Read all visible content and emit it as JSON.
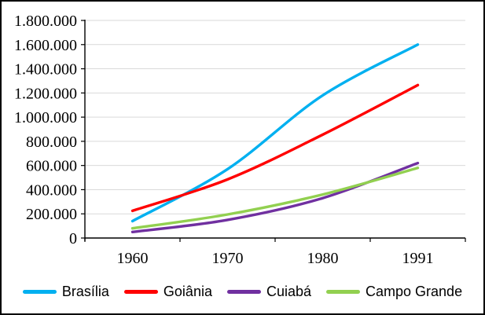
{
  "chart_data": {
    "type": "line",
    "title": "",
    "categories": [
      "1960",
      "1970",
      "1980",
      "1991"
    ],
    "series": [
      {
        "name": "Brasília",
        "color": "#00B0F0",
        "values": [
          140000,
          570000,
          1180000,
          1600000
        ]
      },
      {
        "name": "Goiânia",
        "color": "#FF0000",
        "values": [
          225000,
          485000,
          855000,
          1265000
        ]
      },
      {
        "name": "Cuiabá",
        "color": "#7030A0",
        "values": [
          50000,
          150000,
          330000,
          620000
        ]
      },
      {
        "name": "Campo Grande",
        "color": "#92D050",
        "values": [
          80000,
          195000,
          360000,
          580000
        ]
      }
    ],
    "xlabel": "",
    "ylabel": "",
    "ylim": [
      0,
      1800000
    ],
    "y_tick_step": 200000,
    "y_tick_labels": [
      "0",
      "200.000",
      "400.000",
      "600.000",
      "800.000",
      "1.000.000",
      "1.200.000",
      "1.400.000",
      "1.600.000",
      "1.800.000"
    ],
    "grid": true,
    "smoothed_lines": true,
    "legend_position": "bottom"
  },
  "colors": {
    "background": "#FFFFFF",
    "frame_border": "#000000",
    "gridline": "#D9D9D9",
    "axis_line": "#000000",
    "tick_mark": "#000000",
    "label_text": "#000000"
  }
}
